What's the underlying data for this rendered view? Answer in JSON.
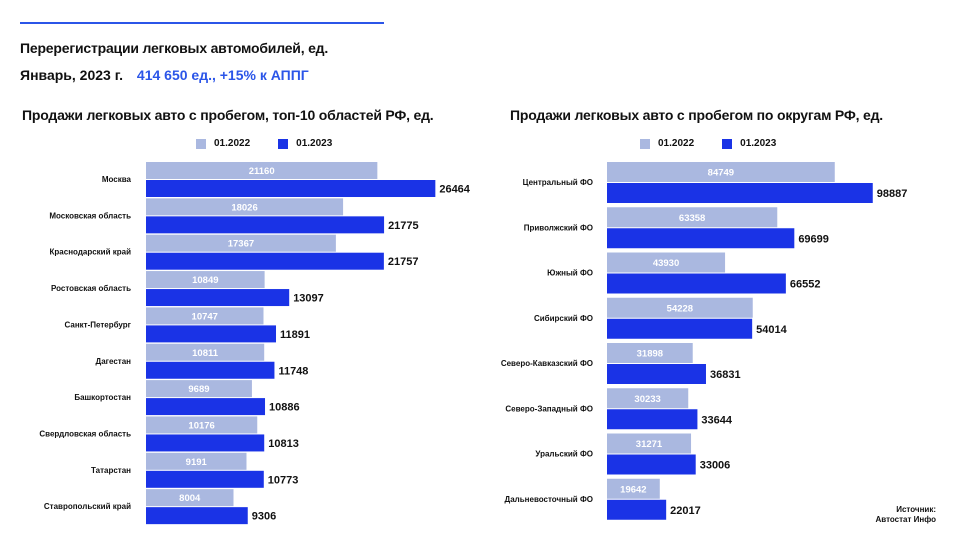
{
  "header": {
    "title": "Перерегистрации легковых автомобилей, ед.",
    "date": "Январь, 2023 г.",
    "stats": "414 650 ед.,  +15% к АППГ"
  },
  "colors": {
    "prev": "#aab8e0",
    "curr": "#1a33e6",
    "accent": "#2b55e8"
  },
  "legend": {
    "prev": "01.2022",
    "curr": "01.2023"
  },
  "source": {
    "line1": "Источник:",
    "line2": "Автостат Инфо"
  },
  "chart_data": [
    {
      "type": "bar",
      "title": "Продажи легковых авто с пробегом, топ-10 областей РФ, ед.",
      "categories": [
        "Москва",
        "Московская область",
        "Краснодарский край",
        "Ростовская область",
        "Санкт-Петербург",
        "Дагестан",
        "Башкортостан",
        "Свердловская область",
        "Татарстан",
        "Ставропольский край"
      ],
      "series": [
        {
          "name": "01.2022",
          "values": [
            21160,
            18026,
            17367,
            10849,
            10747,
            10811,
            9689,
            10176,
            9191,
            8004
          ]
        },
        {
          "name": "01.2023",
          "values": [
            26464,
            21775,
            21757,
            13097,
            11891,
            11748,
            10886,
            10813,
            10773,
            9306
          ]
        }
      ],
      "xlim": [
        0,
        30000
      ]
    },
    {
      "type": "bar",
      "title": "Продажи легковых авто с пробегом по округам РФ, ед.",
      "categories": [
        "Центральный ФО",
        "Приволжский ФО",
        "Южный ФО",
        "Сибирский ФО",
        "Северо-Кавказский ФО",
        "Северо-Западный ФО",
        "Уральский ФО",
        "Дальневосточный ФО"
      ],
      "series": [
        {
          "name": "01.2022",
          "values": [
            84749,
            63358,
            43930,
            54228,
            31898,
            30233,
            31271,
            19642
          ]
        },
        {
          "name": "01.2023",
          "values": [
            98887,
            69699,
            66552,
            54014,
            36831,
            33644,
            33006,
            22017
          ]
        }
      ],
      "xlim": [
        0,
        112000
      ]
    }
  ]
}
